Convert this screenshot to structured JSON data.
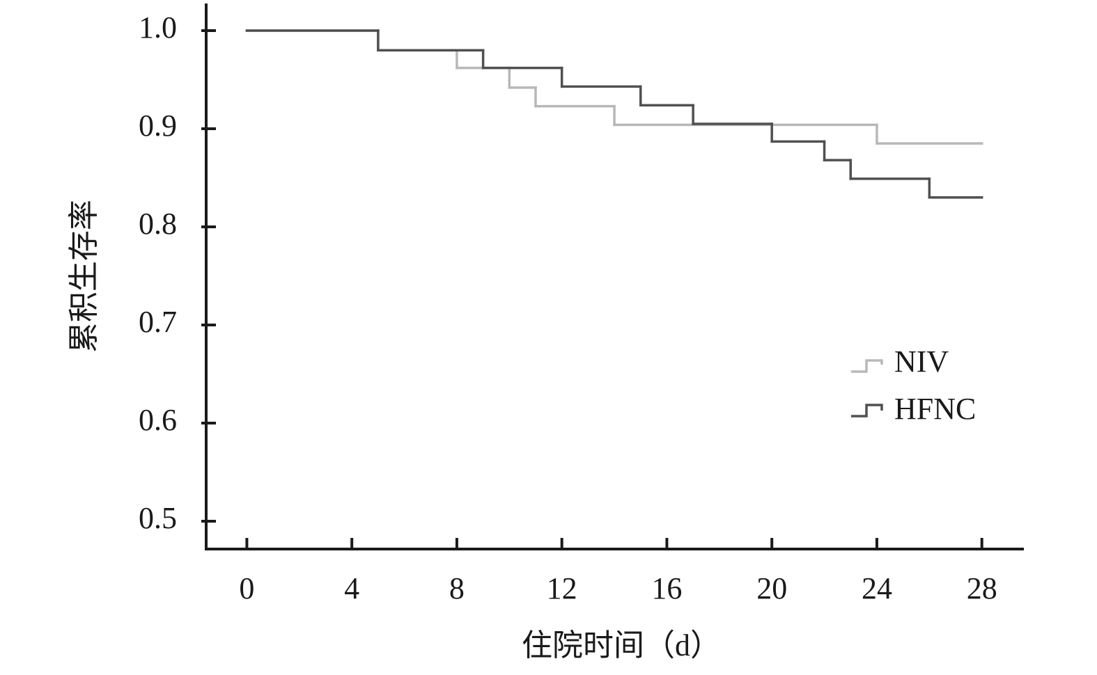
{
  "chart_data": {
    "type": "step",
    "x_label": "住院时间（d）",
    "y_label": "累积生存率",
    "xlim": [
      -1.55,
      29.6
    ],
    "ylim": [
      0.4716,
      1.0277
    ],
    "xticks": [
      0,
      4,
      8,
      12,
      16,
      20,
      24,
      28
    ],
    "yticks": [
      0.5,
      0.6,
      0.7,
      0.8,
      0.9,
      {
        "value": 1,
        "label": "1.0"
      }
    ],
    "legend": "right",
    "series": [
      {
        "name": "NIV",
        "color": "#b8b8b8",
        "x": [
          0,
          5,
          8,
          10,
          11,
          14,
          24,
          28
        ],
        "values": [
          1,
          0.98,
          0.962,
          0.942,
          0.923,
          0.904,
          0.885,
          0.885
        ]
      },
      {
        "name": "HFNC",
        "color": "#505050",
        "x": [
          0,
          5,
          9,
          12,
          15,
          17,
          20,
          22,
          23,
          26,
          28
        ],
        "values": [
          1,
          0.98,
          0.962,
          0.943,
          0.924,
          0.905,
          0.887,
          0.868,
          0.849,
          0.83,
          0.83
        ]
      }
    ]
  }
}
